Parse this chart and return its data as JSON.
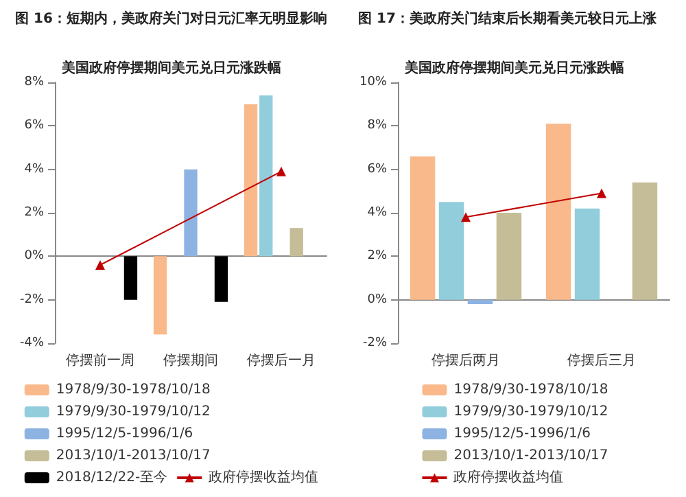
{
  "chart_data": [
    {
      "type": "bar",
      "title": "图 16：短期内，美政府关门对日元汇率无明显影响",
      "subtitle": "美国政府停摆期间美元兑日元涨跌幅",
      "categories": [
        "停摆前一周",
        "停摆期间",
        "停摆后一月"
      ],
      "series": [
        {
          "name": "1978/9/30-1978/10/18",
          "color": "#f9b98b",
          "values": [
            null,
            -3.6,
            7.0
          ]
        },
        {
          "name": "1979/9/30-1979/10/12",
          "color": "#92cddc",
          "values": [
            null,
            null,
            7.4
          ]
        },
        {
          "name": "1995/12/5-1996/1/6",
          "color": "#8db3e2",
          "values": [
            null,
            4.0,
            null
          ]
        },
        {
          "name": "2013/10/1-2013/10/17",
          "color": "#c4bd97",
          "values": [
            null,
            null,
            1.3
          ]
        },
        {
          "name": "2018/12/22-至今",
          "color": "#000000",
          "values": [
            -2.0,
            -2.1,
            null
          ]
        },
        {
          "name": "政府停摆收益均值",
          "type": "line",
          "color": "#c00000",
          "values": [
            -0.4,
            null,
            3.9
          ]
        }
      ],
      "ylim": [
        -4,
        8
      ],
      "yticks": [
        {
          "value": -4,
          "label": "-4%"
        },
        {
          "value": -2,
          "label": "-2%"
        },
        {
          "value": 0,
          "label": "0%"
        },
        {
          "value": 2,
          "label": "2%"
        },
        {
          "value": 4,
          "label": "4%"
        },
        {
          "value": 6,
          "label": "6%"
        },
        {
          "value": 8,
          "label": "8%"
        }
      ],
      "legend": "bottom",
      "marker": "triangle"
    },
    {
      "type": "bar",
      "title": "图 17：美政府关门结束后长期看美元较日元上涨",
      "subtitle": "美国政府停摆期间美元兑日元涨跌幅",
      "categories": [
        "停摆后两月",
        "停摆后三月"
      ],
      "series": [
        {
          "name": "1978/9/30-1978/10/18",
          "color": "#f9b98b",
          "values": [
            6.6,
            8.1
          ]
        },
        {
          "name": "1979/9/30-1979/10/12",
          "color": "#92cddc",
          "values": [
            4.5,
            4.2
          ]
        },
        {
          "name": "1995/12/5-1996/1/6",
          "color": "#8db3e2",
          "values": [
            -0.2,
            null
          ]
        },
        {
          "name": "2013/10/1-2013/10/17",
          "color": "#c4bd97",
          "values": [
            4.0,
            5.4
          ]
        },
        {
          "name": "政府停摆收益均值",
          "type": "line",
          "color": "#c00000",
          "values": [
            3.8,
            4.9
          ]
        }
      ],
      "ylim": [
        -2,
        10
      ],
      "yticks": [
        {
          "value": -2,
          "label": "-2%"
        },
        {
          "value": 0,
          "label": "0%"
        },
        {
          "value": 2,
          "label": "2%"
        },
        {
          "value": 4,
          "label": "4%"
        },
        {
          "value": 6,
          "label": "6%"
        },
        {
          "value": 8,
          "label": "8%"
        },
        {
          "value": 10,
          "label": "10%"
        }
      ],
      "legend": "bottom",
      "marker": "triangle"
    }
  ]
}
